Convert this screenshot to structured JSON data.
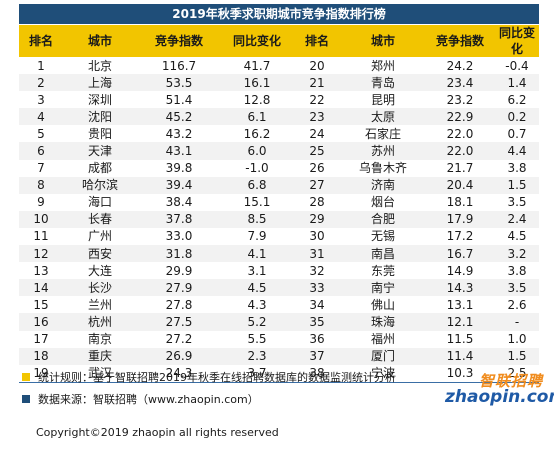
{
  "title": "2019年秋季求职期城市竞争指数排行榜",
  "chart_data": {
    "type": "table",
    "columns": [
      "排名",
      "城市",
      "竞争指数",
      "同比变化",
      "排名",
      "城市",
      "竞争指数",
      "同比变化"
    ],
    "rows": [
      [
        [
          "1",
          "北京",
          "116.7",
          "41.7"
        ],
        [
          "20",
          "郑州",
          "24.2",
          "-0.4"
        ]
      ],
      [
        [
          "2",
          "上海",
          "53.5",
          "16.1"
        ],
        [
          "21",
          "青岛",
          "23.4",
          "1.4"
        ]
      ],
      [
        [
          "3",
          "深圳",
          "51.4",
          "12.8"
        ],
        [
          "22",
          "昆明",
          "23.2",
          "6.2"
        ]
      ],
      [
        [
          "4",
          "沈阳",
          "45.2",
          "6.1"
        ],
        [
          "23",
          "太原",
          "22.9",
          "0.2"
        ]
      ],
      [
        [
          "5",
          "贵阳",
          "43.2",
          "16.2"
        ],
        [
          "24",
          "石家庄",
          "22.0",
          "0.7"
        ]
      ],
      [
        [
          "6",
          "天津",
          "43.1",
          "6.0"
        ],
        [
          "25",
          "苏州",
          "22.0",
          "4.4"
        ]
      ],
      [
        [
          "7",
          "成都",
          "39.8",
          "-1.0"
        ],
        [
          "26",
          "乌鲁木齐",
          "21.7",
          "3.8"
        ]
      ],
      [
        [
          "8",
          "哈尔滨",
          "39.4",
          "6.8"
        ],
        [
          "27",
          "济南",
          "20.4",
          "1.5"
        ]
      ],
      [
        [
          "9",
          "海口",
          "38.4",
          "15.1"
        ],
        [
          "28",
          "烟台",
          "18.1",
          "3.5"
        ]
      ],
      [
        [
          "10",
          "长春",
          "37.8",
          "8.5"
        ],
        [
          "29",
          "合肥",
          "17.9",
          "2.4"
        ]
      ],
      [
        [
          "11",
          "广州",
          "33.0",
          "7.9"
        ],
        [
          "30",
          "无锡",
          "17.2",
          "4.5"
        ]
      ],
      [
        [
          "12",
          "西安",
          "31.8",
          "4.1"
        ],
        [
          "31",
          "南昌",
          "16.7",
          "3.2"
        ]
      ],
      [
        [
          "13",
          "大连",
          "29.9",
          "3.1"
        ],
        [
          "32",
          "东莞",
          "14.9",
          "3.8"
        ]
      ],
      [
        [
          "14",
          "长沙",
          "27.9",
          "4.5"
        ],
        [
          "33",
          "南宁",
          "14.3",
          "3.5"
        ]
      ],
      [
        [
          "15",
          "兰州",
          "27.8",
          "4.3"
        ],
        [
          "34",
          "佛山",
          "13.1",
          "2.6"
        ]
      ],
      [
        [
          "16",
          "杭州",
          "27.5",
          "5.2"
        ],
        [
          "35",
          "珠海",
          "12.1",
          "-"
        ]
      ],
      [
        [
          "17",
          "南京",
          "27.2",
          "5.5"
        ],
        [
          "36",
          "福州",
          "11.5",
          "1.0"
        ]
      ],
      [
        [
          "18",
          "重庆",
          "26.9",
          "2.3"
        ],
        [
          "37",
          "厦门",
          "11.4",
          "1.5"
        ]
      ],
      [
        [
          "19",
          "武汉",
          "24.3",
          "3.7"
        ],
        [
          "38",
          "宁波",
          "10.3",
          "2.5"
        ]
      ]
    ]
  },
  "notes": [
    {
      "text": "统计规则：基于智联招聘2019年秋季在线招聘数据库的数据监测统计分析",
      "color": "#f2c500"
    },
    {
      "text": "数据来源：智联招聘（www.zhaopin.com）",
      "color": "#1f4e79"
    }
  ],
  "logo": {
    "cn": "智联招聘",
    "en": "zhaopin.com"
  },
  "copyright": "Copyright©2019 zhaopin all rights reserved"
}
